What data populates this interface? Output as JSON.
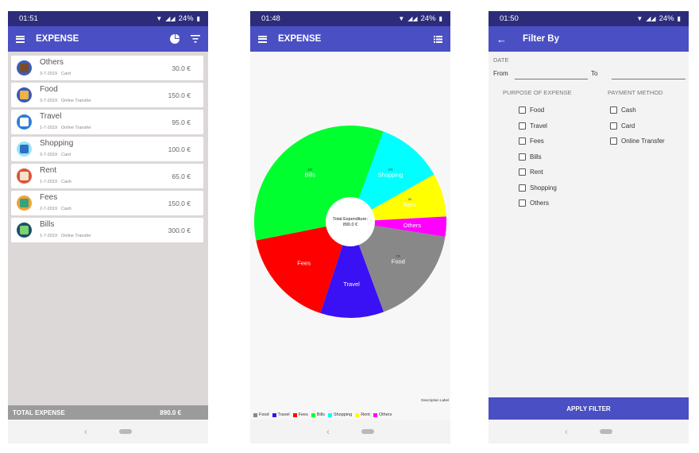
{
  "screens": {
    "list": {
      "status": {
        "time": "01:51",
        "battery": "24%"
      },
      "title": "EXPENSE",
      "items": [
        {
          "name": "Others",
          "date": "3-7-2019",
          "method": "Card",
          "amount": "30.0 €",
          "icon_color": "#3b5cb5",
          "icon_inner": "#7a4a2a",
          "icon": "wallet-icon"
        },
        {
          "name": "Food",
          "date": "3-7-2019",
          "method": "Online Transfer",
          "amount": "150.0 €",
          "icon_color": "#3b5cb5",
          "icon_inner": "#f0b14a",
          "icon": "food-icon"
        },
        {
          "name": "Travel",
          "date": "1-7-2019",
          "method": "Online Transfer",
          "amount": "95.0 €",
          "icon_color": "#2f7fd6",
          "icon_inner": "#ffffff",
          "icon": "plane-icon"
        },
        {
          "name": "Shopping",
          "date": "3-7-2019",
          "method": "Card",
          "amount": "100.0 €",
          "icon_color": "#9be4f0",
          "icon_inner": "#2c6fc7",
          "icon": "cart-icon"
        },
        {
          "name": "Rent",
          "date": "1-7-2019",
          "method": "Cash",
          "amount": "65.0 €",
          "icon_color": "#e0523a",
          "icon_inner": "#f2e3c9",
          "icon": "house-icon"
        },
        {
          "name": "Fees",
          "date": "2-7-2019",
          "method": "Cash",
          "amount": "150.0 €",
          "icon_color": "#f0a23a",
          "icon_inner": "#3aa17a",
          "icon": "receipt-icon"
        },
        {
          "name": "Bills",
          "date": "1-7-2019",
          "method": "Online Transfer",
          "amount": "300.0 €",
          "icon_color": "#1d4f6b",
          "icon_inner": "#7ed36b",
          "icon": "bill-icon"
        }
      ],
      "total_label": "TOTAL EXPENSE",
      "total_value": "890.0 €"
    },
    "chart": {
      "status": {
        "time": "01:48",
        "battery": "24%"
      },
      "title": "EXPENSE",
      "center_line1": "Total Expenditure:",
      "center_line2": "890.0 €",
      "description": "Description Label"
    },
    "filter": {
      "status": {
        "time": "01:50",
        "battery": "24%"
      },
      "title": "Filter By",
      "date_label": "DATE",
      "from_label": "From",
      "to_label": "To",
      "purpose_label": "PURPOSE OF EXPENSE",
      "payment_label": "PAYMENT METHOD",
      "purposes": [
        "Food",
        "Travel",
        "Fees",
        "Bills",
        "Rent",
        "Shopping",
        "Others"
      ],
      "payments": [
        "Cash",
        "Card",
        "Online Transfer"
      ],
      "apply_label": "APPLY FILTER"
    }
  },
  "chart_data": {
    "type": "pie",
    "title": "",
    "center_text": "Total Expenditure: 890.0 €",
    "categories": [
      "Food",
      "Travel",
      "Fees",
      "Bills",
      "Shopping",
      "Rent",
      "Others"
    ],
    "values": [
      150,
      95,
      150,
      300,
      100,
      65,
      30
    ],
    "colors": [
      "#888888",
      "#3a10f5",
      "#ff0000",
      "#00ff2e",
      "#00ffff",
      "#ffff00",
      "#ff00ff"
    ],
    "slice_labels": [
      {
        "category": "Bills",
        "value_text": "300",
        "label": "Bills"
      },
      {
        "category": "Shopping",
        "value_text": "100",
        "label": "Shopping"
      },
      {
        "category": "Rent",
        "value_text": "65",
        "label": "Rent"
      },
      {
        "category": "Others",
        "value_text": "",
        "label": "Others"
      },
      {
        "category": "Food",
        "value_text": "150",
        "label": "Food"
      },
      {
        "category": "Travel",
        "value_text": "",
        "label": "Travel"
      },
      {
        "category": "Fees",
        "value_text": "",
        "label": "Fees"
      }
    ],
    "legend": [
      "Food",
      "Travel",
      "Fees",
      "Bills",
      "Shopping",
      "Rent",
      "Others"
    ],
    "legend_placement": "bottom-left"
  }
}
